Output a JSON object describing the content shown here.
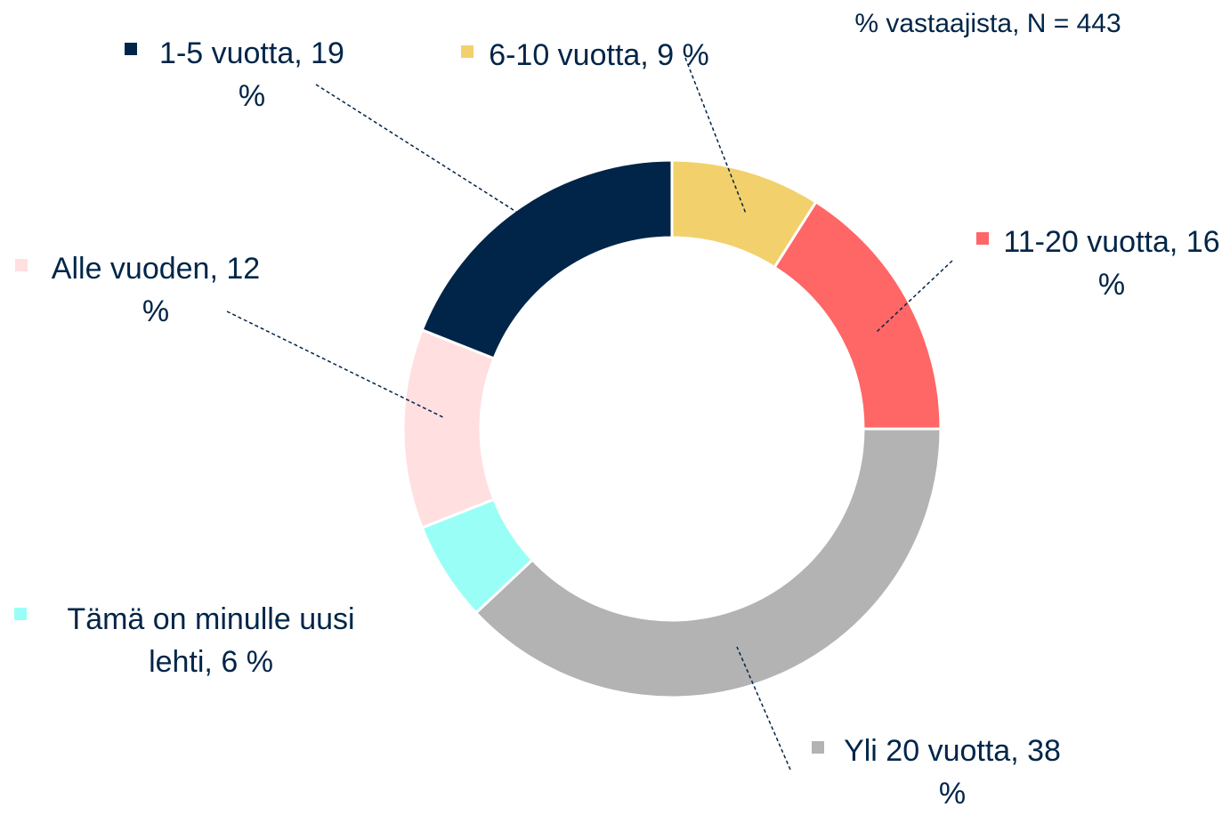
{
  "chart_data": {
    "type": "donut",
    "subtitle": "% vastaajista, N = 443",
    "categories": [
      "6-10 vuotta,",
      "11-20 vuotta,",
      "Yli 20 vuotta,",
      "Tämä on minulle uusi lehti,",
      "Alle vuoden,",
      "1-5 vuotta,"
    ],
    "values": [
      9,
      16,
      38,
      6,
      12,
      19
    ],
    "value_labels": [
      "9 %",
      "16 %",
      "38 %",
      "6 %",
      "12 %",
      "19 %"
    ],
    "colors": [
      "#f2d06b",
      "#ff6666",
      "#b3b3b3",
      "#99fff6",
      "#ffdfe0",
      "#002548"
    ]
  }
}
